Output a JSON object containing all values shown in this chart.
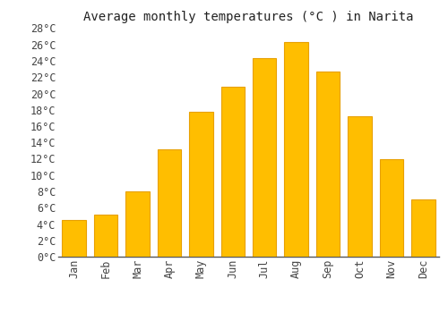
{
  "title": "Average monthly temperatures (°C ) in Narita",
  "months": [
    "Jan",
    "Feb",
    "Mar",
    "Apr",
    "May",
    "Jun",
    "Jul",
    "Aug",
    "Sep",
    "Oct",
    "Nov",
    "Dec"
  ],
  "temperatures": [
    4.5,
    5.1,
    8.0,
    13.2,
    17.7,
    20.8,
    24.3,
    26.3,
    22.7,
    17.2,
    12.0,
    7.0
  ],
  "bar_color": "#FFBE00",
  "bar_edge_color": "#E8A000",
  "ylim": [
    0,
    28
  ],
  "ytick_step": 2,
  "background_color": "#FFFFFF",
  "grid_color": "#FFFFFF",
  "font_family": "monospace",
  "title_fontsize": 10,
  "tick_fontsize": 8.5,
  "bar_width": 0.75
}
